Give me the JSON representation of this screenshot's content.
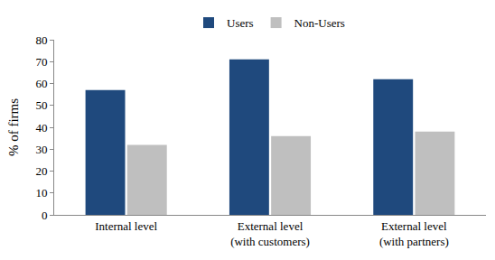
{
  "chart_data": {
    "type": "bar",
    "categories": [
      "Internal level",
      "External level (with customers)",
      "External level (with partners)"
    ],
    "series": [
      {
        "name": "Users",
        "color": "#1f497d",
        "values": [
          57,
          71,
          62
        ]
      },
      {
        "name": "Non-Users",
        "color": "#bfbfbf",
        "values": [
          32,
          36,
          38
        ]
      }
    ],
    "y_label": "% of firms",
    "ylim": [
      0,
      80
    ],
    "yticks": [
      0,
      10,
      20,
      30,
      40,
      50,
      60,
      70,
      80
    ],
    "grid": false,
    "legend": "top"
  }
}
